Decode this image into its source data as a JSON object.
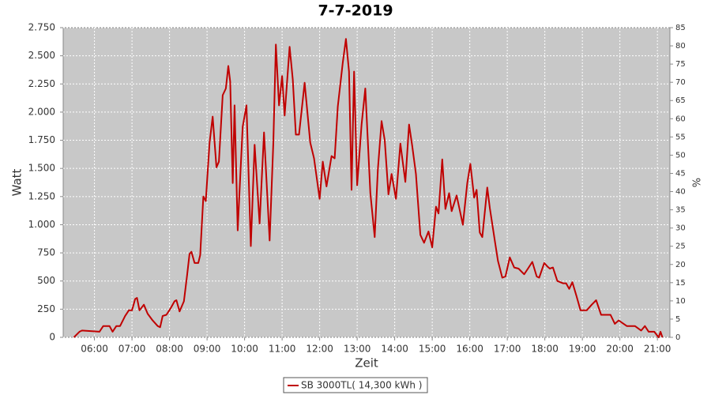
{
  "chart_data": {
    "type": "line",
    "title": "7-7-2019",
    "x_label": "Zeit",
    "y_label": "Watt",
    "y2_label": "%",
    "x": [
      "05:27",
      "05:36",
      "05:40",
      "06:08",
      "06:14",
      "06:24",
      "06:29",
      "06:35",
      "06:41",
      "06:49",
      "06:55",
      "07:00",
      "07:05",
      "07:08",
      "07:12",
      "07:19",
      "07:25",
      "07:33",
      "07:41",
      "07:45",
      "07:49",
      "07:55",
      "08:02",
      "08:08",
      "08:11",
      "08:16",
      "08:23",
      "08:28",
      "08:32",
      "08:35",
      "08:40",
      "08:46",
      "08:49",
      "08:54",
      "08:58",
      "09:04",
      "09:09",
      "09:15",
      "09:19",
      "09:25",
      "09:30",
      "09:34",
      "09:37",
      "09:41",
      "09:44",
      "09:49",
      "09:52",
      "09:57",
      "10:03",
      "10:10",
      "10:16",
      "10:24",
      "10:31",
      "10:40",
      "10:46",
      "10:50",
      "10:55",
      "11:00",
      "11:04",
      "11:12",
      "11:17",
      "11:22",
      "11:27",
      "11:36",
      "11:45",
      "11:51",
      "12:00",
      "12:05",
      "12:11",
      "12:19",
      "12:24",
      "12:29",
      "12:37",
      "12:42",
      "12:47",
      "12:51",
      "12:55",
      "13:00",
      "13:07",
      "13:13",
      "13:21",
      "13:28",
      "13:33",
      "13:39",
      "13:44",
      "13:50",
      "13:55",
      "14:02",
      "14:09",
      "14:17",
      "14:23",
      "14:28",
      "14:34",
      "14:41",
      "14:47",
      "14:54",
      "15:00",
      "15:06",
      "15:10",
      "15:16",
      "15:21",
      "15:27",
      "15:31",
      "15:39",
      "15:49",
      "15:56",
      "16:01",
      "16:07",
      "16:11",
      "16:16",
      "16:20",
      "16:28",
      "16:32",
      "16:40",
      "16:45",
      "16:52",
      "16:57",
      "17:04",
      "17:11",
      "17:18",
      "17:27",
      "17:33",
      "17:40",
      "17:47",
      "17:51",
      "17:59",
      "18:04",
      "18:08",
      "18:13",
      "18:20",
      "18:29",
      "18:34",
      "18:39",
      "18:44",
      "18:51",
      "18:57",
      "19:07",
      "19:15",
      "19:22",
      "19:30",
      "19:45",
      "19:52",
      "19:58",
      "20:11",
      "20:24",
      "20:34",
      "20:40",
      "20:46",
      "20:55",
      "21:02",
      "21:05",
      "21:08"
    ],
    "series": [
      {
        "name": "SB 3000TL( 14,300 kWh )",
        "color": "#c00000",
        "values": [
          0,
          50,
          60,
          50,
          100,
          100,
          50,
          100,
          100,
          190,
          240,
          240,
          340,
          350,
          240,
          290,
          210,
          150,
          100,
          90,
          190,
          200,
          260,
          320,
          330,
          230,
          320,
          550,
          740,
          760,
          660,
          660,
          730,
          1250,
          1210,
          1730,
          1960,
          1510,
          1560,
          2150,
          2210,
          2410,
          2270,
          1370,
          2060,
          950,
          1310,
          1870,
          2060,
          810,
          1710,
          1010,
          1820,
          860,
          1730,
          2600,
          2060,
          2320,
          1970,
          2580,
          2290,
          1800,
          1800,
          2260,
          1730,
          1590,
          1230,
          1560,
          1340,
          1610,
          1590,
          2050,
          2440,
          2650,
          2360,
          1310,
          2360,
          1350,
          1890,
          2210,
          1280,
          890,
          1490,
          1920,
          1750,
          1270,
          1450,
          1230,
          1720,
          1380,
          1890,
          1700,
          1450,
          910,
          840,
          940,
          800,
          1160,
          1100,
          1580,
          1140,
          1280,
          1120,
          1260,
          1000,
          1370,
          1540,
          1240,
          1310,
          930,
          890,
          1330,
          1150,
          860,
          680,
          530,
          540,
          710,
          620,
          610,
          560,
          610,
          670,
          540,
          530,
          660,
          630,
          610,
          620,
          500,
          480,
          480,
          430,
          490,
          360,
          240,
          240,
          290,
          330,
          200,
          200,
          120,
          150,
          100,
          100,
          60,
          100,
          50,
          50,
          0,
          50,
          0
        ]
      }
    ],
    "xlim": [
      "05:10",
      "21:20"
    ],
    "xticks": [
      "06:00",
      "07:00",
      "08:00",
      "09:00",
      "10:00",
      "11:00",
      "12:00",
      "13:00",
      "14:00",
      "15:00",
      "16:00",
      "17:00",
      "18:00",
      "19:00",
      "20:00",
      "21:00"
    ],
    "ylim": [
      0,
      2750
    ],
    "yticks": [
      0,
      250,
      500,
      750,
      {
        "value": 1000,
        "label": "1.000"
      },
      {
        "value": 1250,
        "label": "1.250"
      },
      {
        "value": 1500,
        "label": "1.500"
      },
      {
        "value": 1750,
        "label": "1.750"
      },
      {
        "value": 2000,
        "label": "2.000"
      },
      {
        "value": 2250,
        "label": "2.250"
      },
      {
        "value": 2500,
        "label": "2.500"
      },
      {
        "value": 2750,
        "label": "2.750"
      }
    ],
    "y2lim": [
      0,
      85
    ],
    "y2ticks": [
      0,
      5,
      10,
      15,
      20,
      25,
      30,
      35,
      40,
      45,
      50,
      55,
      60,
      65,
      70,
      75,
      80,
      85
    ],
    "grid": true
  }
}
